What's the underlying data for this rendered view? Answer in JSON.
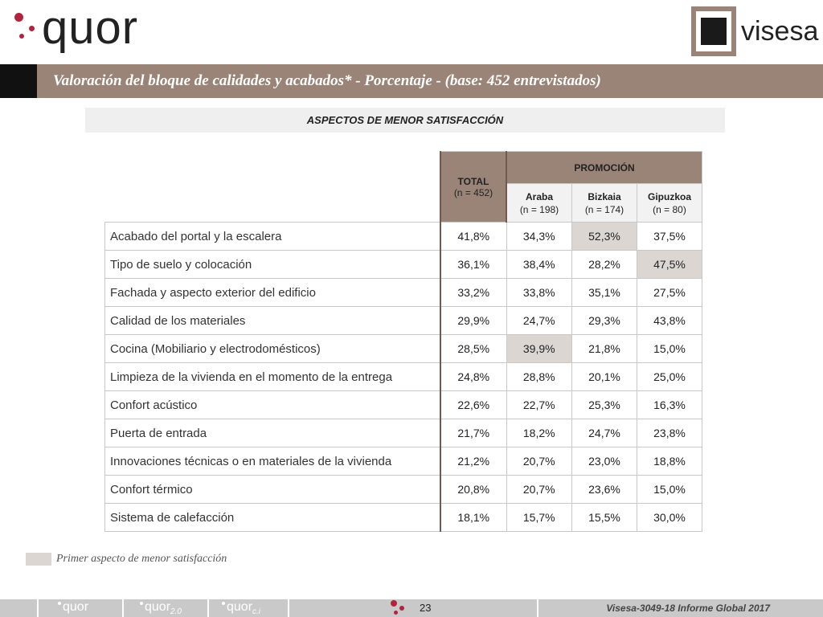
{
  "header": {
    "logo_left": "quor",
    "logo_right": "visesa",
    "title": "Valoración del bloque de calidades y acabados* - Porcentaje - (base: 452 entrevistados)"
  },
  "section": {
    "title": "ASPECTOS DE MENOR SATISFACCIÓN"
  },
  "table": {
    "total_header": "TOTAL",
    "total_n": "(n = 452)",
    "promo_header": "PROMOCIÓN",
    "columns": [
      {
        "name": "Araba",
        "n": "(n = 198)"
      },
      {
        "name": "Bizkaia",
        "n": "(n = 174)"
      },
      {
        "name": "Gipuzkoa",
        "n": "(n = 80)"
      }
    ],
    "rows": [
      {
        "label": "Acabado del portal y la escalera",
        "total": "41,8%",
        "araba": "34,3%",
        "bizkaia": "52,3%",
        "gipuzkoa": "37,5%"
      },
      {
        "label": "Tipo de suelo y colocación",
        "total": "36,1%",
        "araba": "38,4%",
        "bizkaia": "28,2%",
        "gipuzkoa": "47,5%"
      },
      {
        "label": "Fachada y aspecto exterior del edificio",
        "total": "33,2%",
        "araba": "33,8%",
        "bizkaia": "35,1%",
        "gipuzkoa": "27,5%"
      },
      {
        "label": "Calidad de los materiales",
        "total": "29,9%",
        "araba": "24,7%",
        "bizkaia": "29,3%",
        "gipuzkoa": "43,8%"
      },
      {
        "label": "Cocina (Mobiliario y electrodomésticos)",
        "total": "28,5%",
        "araba": "39,9%",
        "bizkaia": "21,8%",
        "gipuzkoa": "15,0%"
      },
      {
        "label": "Limpieza de la vivienda en el momento de la entrega",
        "total": "24,8%",
        "araba": "28,8%",
        "bizkaia": "20,1%",
        "gipuzkoa": "25,0%"
      },
      {
        "label": "Confort acústico",
        "total": "22,6%",
        "araba": "22,7%",
        "bizkaia": "25,3%",
        "gipuzkoa": "16,3%"
      },
      {
        "label": "Puerta de entrada",
        "total": "21,7%",
        "araba": "18,2%",
        "bizkaia": "24,7%",
        "gipuzkoa": "23,8%"
      },
      {
        "label": "Innovaciones técnicas o en materiales de la vivienda",
        "total": "21,2%",
        "araba": "20,7%",
        "bizkaia": "23,0%",
        "gipuzkoa": "18,8%"
      },
      {
        "label": "Confort térmico",
        "total": "20,8%",
        "araba": "20,7%",
        "bizkaia": "23,6%",
        "gipuzkoa": "15,0%"
      },
      {
        "label": "Sistema de calefacción",
        "total": "18,1%",
        "araba": "15,7%",
        "bizkaia": "15,5%",
        "gipuzkoa": "30,0%"
      }
    ]
  },
  "legend": {
    "text": "Primer aspecto de menor satisfacción",
    "color": "#dcd6d3"
  },
  "footer": {
    "brands": [
      "quor",
      "quor",
      "quor"
    ],
    "brand_suffixes": [
      "",
      "2.0",
      "c.i"
    ],
    "page_number": "23",
    "report": "Visesa-3049-18  Informe Global 2017"
  },
  "colors": {
    "accent": "#9a8477",
    "brand_red": "#b0243e",
    "highlight": "#dcd6d3"
  }
}
